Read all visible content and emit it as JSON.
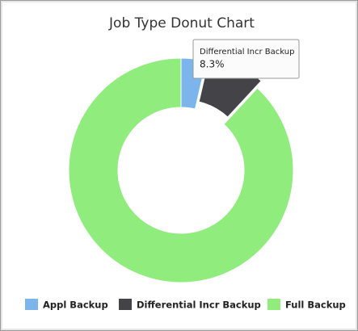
{
  "chart_data": {
    "type": "donut",
    "title": "Job Type Donut Chart",
    "categories": [
      "Appl Backup",
      "Differential Incr Backup",
      "Full Backup"
    ],
    "values": [
      3.6,
      8.3,
      88.1
    ],
    "value_labels": [
      null,
      "8.3%",
      null
    ],
    "colors": [
      "#7cb5ec",
      "#434348",
      "#90ed7d"
    ]
  }
}
